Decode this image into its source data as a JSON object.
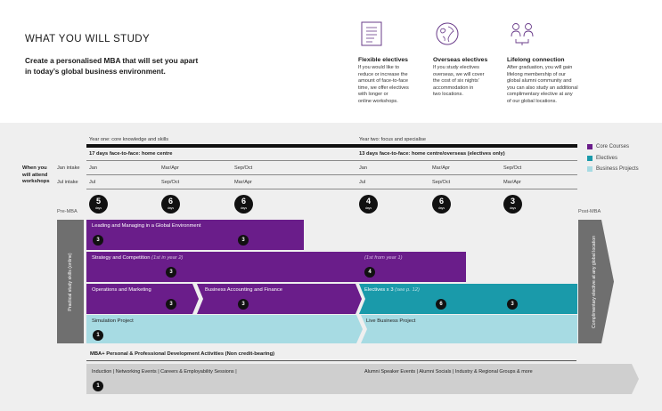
{
  "header": {
    "title": "WHAT YOU WILL STUDY",
    "intro_line1": "Create a personalised MBA that will set you apart",
    "intro_line2": "in today’s global business environment."
  },
  "features": [
    {
      "icon": "document-list-icon",
      "title": "Flexible electives",
      "text": [
        "If you would like to",
        "reduce or increase the",
        "amount of face-to-face",
        "time, we offer electives",
        "with longer or",
        "online workshops."
      ]
    },
    {
      "icon": "globe-icon",
      "title": "Overseas electives",
      "text": [
        "If you study electives",
        "overseas, we will cover",
        "the cost of six nights’",
        "accommodation in",
        "two locations."
      ]
    },
    {
      "icon": "people-connection-icon",
      "title": "Lifelong connection",
      "text": [
        "After graduation, you will gain",
        "lifelong membership of our",
        "global alumni community and",
        "you can also study an additional",
        "complimentary elective at any",
        "of our global locations."
      ]
    }
  ],
  "timeline": {
    "year1_label": "Year one: core knowledge and skills",
    "year2_label": "Year two: focus and specialise",
    "year1_heading": "17 days face-to-face: home centre",
    "year2_heading": "13 days face-to-face: home centre/overseas (electives only)",
    "when_attend": [
      "When you",
      "will attend",
      "workshops"
    ],
    "jan_intake": "Jan intake",
    "jul_intake": "Jul intake",
    "jan_months": [
      "Jan",
      "Mar/Apr",
      "Sep/Oct",
      "Jan",
      "Mar/Apr",
      "Sep/Oct"
    ],
    "jul_months": [
      "Jul",
      "Sep/Oct",
      "Mar/Apr",
      "Jul",
      "Sep/Oct",
      "Mar/Apr"
    ],
    "days": [
      {
        "n": "5",
        "unit": "days"
      },
      {
        "n": "6",
        "unit": "days"
      },
      {
        "n": "6",
        "unit": "days"
      },
      {
        "n": "4",
        "unit": "days"
      },
      {
        "n": "6",
        "unit": "days"
      },
      {
        "n": "3",
        "unit": "days"
      }
    ],
    "pre_mba": "Pre-MBA",
    "post_mba": "Post-MBA",
    "left_vertical": "Practical study skills (online)",
    "right_vertical": "Complimentary elective at any global location"
  },
  "legend": [
    {
      "label": "Core Courses",
      "color": "#6a1d8a"
    },
    {
      "label": "Electives",
      "color": "#1a9aaa"
    },
    {
      "label": "Business Projects",
      "color": "#a7dbe3"
    }
  ],
  "blocks": {
    "leading": {
      "label": "Leading and Managing in a Global Environment",
      "badges": [
        "3",
        "3"
      ]
    },
    "strategy": {
      "label": "Strategy and Competition",
      "note": "(1st in year 2)",
      "badges": [
        "3"
      ]
    },
    "strategy2": {
      "label": "(1st from year 1)",
      "badges": [
        "4"
      ]
    },
    "operations": {
      "label": "Operations and Marketing",
      "badges": [
        "3"
      ]
    },
    "accounting": {
      "label": "Business Accounting and Finance",
      "badges": [
        "3"
      ]
    },
    "electives": {
      "label": "Electives x 3",
      "note": "(see p. 12)",
      "badges": [
        "6",
        "3"
      ]
    },
    "simulation": {
      "label": "Simulation Project",
      "badges": [
        "1"
      ]
    },
    "live": {
      "label": "Live Business Project"
    }
  },
  "pd": {
    "heading": "MBA+ Personal & Professional Development Activities (Non credit-bearing)",
    "left": "Induction | Networking Events | Careers & Employability Sessions |",
    "right": "Alumni Speaker Events | Alumni Socials | Industry & Regional Groups & more",
    "badge": "1"
  }
}
